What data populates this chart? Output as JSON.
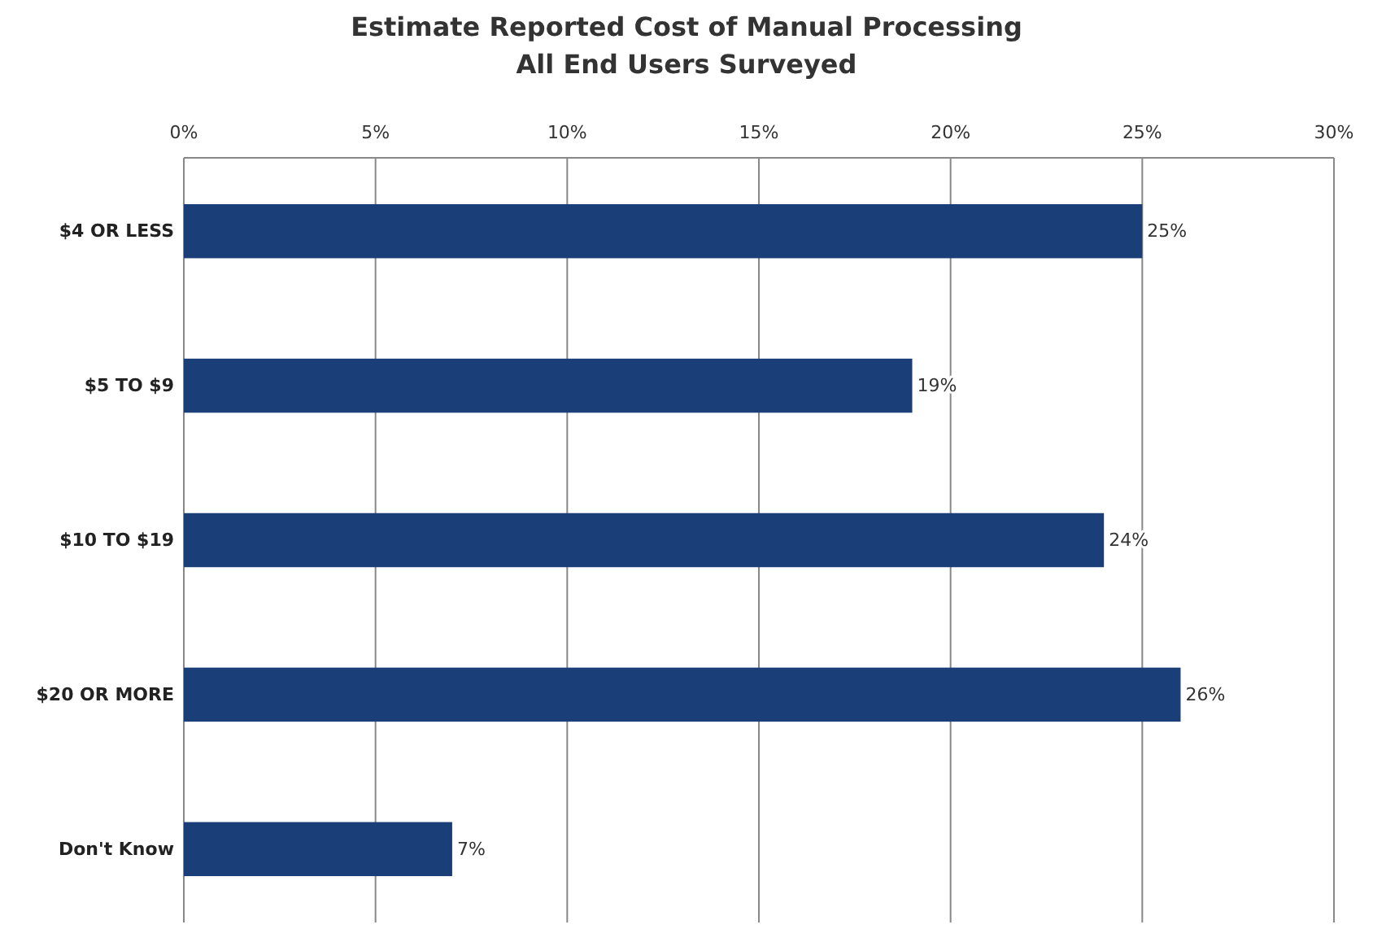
{
  "chart_data": {
    "type": "bar",
    "orientation": "horizontal",
    "title": "Estimate Reported Cost of Manual Processing",
    "subtitle": "All End Users Surveyed",
    "categories": [
      "$4 OR LESS",
      "$5 TO $9",
      "$10 TO $19",
      "$20 OR MORE",
      "Don't Know"
    ],
    "values": [
      25,
      19,
      24,
      26,
      7
    ],
    "color": "#1a3f78",
    "value_labels": [
      "25%",
      "19%",
      "24%",
      "26%",
      "7%"
    ],
    "xlim": [
      0,
      30
    ],
    "xticks": [
      {
        "value": 0,
        "label": "0%"
      },
      {
        "value": 5,
        "label": "5%"
      },
      {
        "value": 10,
        "label": "10%"
      },
      {
        "value": 15,
        "label": "15%"
      },
      {
        "value": 20,
        "label": "20%"
      },
      {
        "value": 25,
        "label": "25%"
      },
      {
        "value": 30,
        "label": "30%"
      }
    ],
    "grid": "x"
  }
}
